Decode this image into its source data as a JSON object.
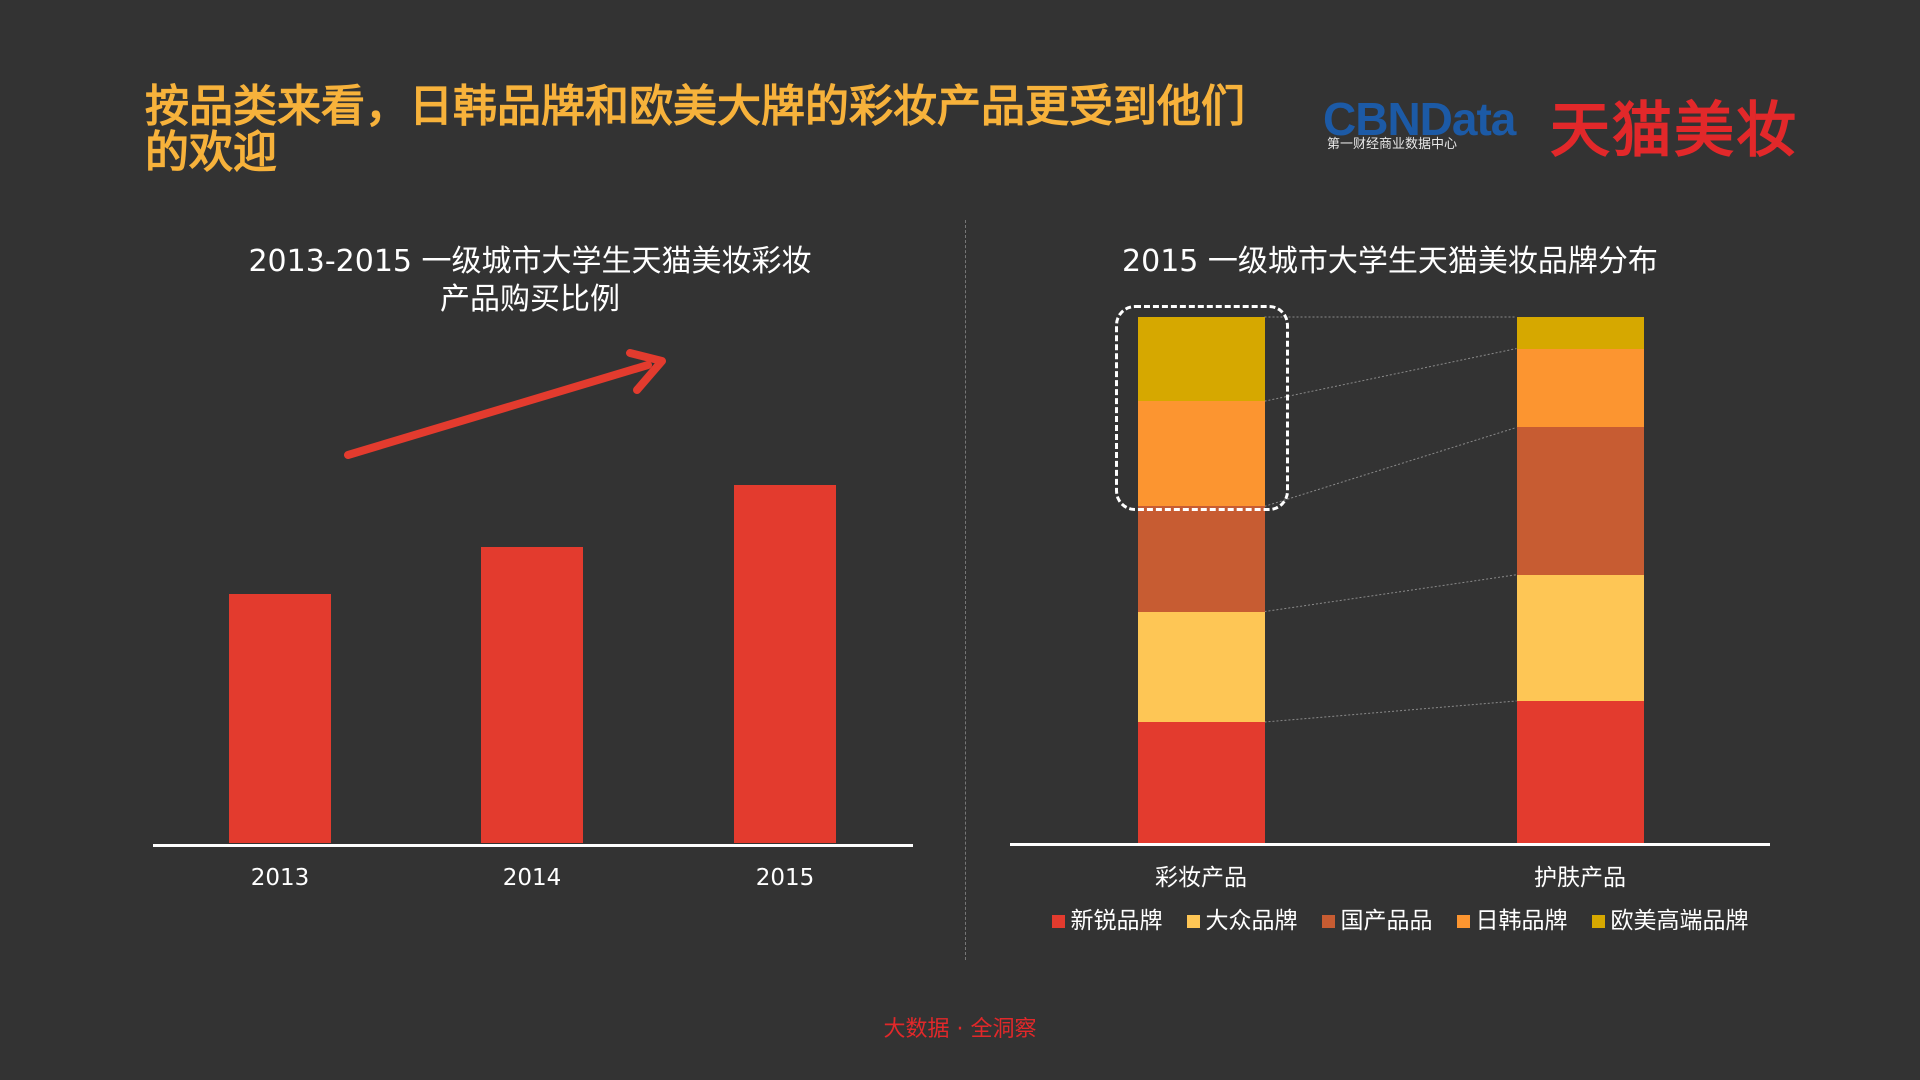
{
  "headline": "按品类来看，日韩品牌和欧美大牌的彩妆产品更受到他们的欢迎",
  "logos": {
    "cbn_word": "CBNData",
    "cbn_sub": "第一财经商业数据中心",
    "tmall": "天猫美妆"
  },
  "footer": "大数据 · 全洞察",
  "colors": {
    "background": "#333333",
    "headline": "#f7b23b",
    "bar": "#e33b2e",
    "new_brand": "#e33b2e",
    "mass_brand": "#fec655",
    "domestic_brand": "#c75c32",
    "jpkr_brand": "#fc9530",
    "western_luxury": "#d6a800"
  },
  "chart_data": [
    {
      "type": "bar",
      "title": "2013-2015 一级城市大学生天猫美妆彩妆产品购买比例",
      "title_lines": [
        "2013-2015 一级城市大学生天猫美妆彩妆",
        "产品购买比例"
      ],
      "categories": [
        "2013",
        "2014",
        "2015"
      ],
      "values": [
        57,
        68,
        82
      ],
      "ylim": [
        0,
        100
      ],
      "trend_arrow": "up",
      "grid": false
    },
    {
      "type": "bar",
      "stacked": true,
      "normalized": true,
      "title": "2015 一级城市大学生天猫美妆品牌分布",
      "categories": [
        "彩妆产品",
        "护肤产品"
      ],
      "series": [
        {
          "name": "新锐品牌",
          "color": "#e33b2e",
          "values": [
            23,
            27
          ]
        },
        {
          "name": "大众品牌",
          "color": "#fec655",
          "values": [
            21,
            24
          ]
        },
        {
          "name": "国产品品",
          "color": "#c75c32",
          "values": [
            20,
            28
          ]
        },
        {
          "name": "日韩品牌",
          "color": "#fc9530",
          "values": [
            20,
            15
          ]
        },
        {
          "name": "欧美高端品牌",
          "color": "#d6a800",
          "values": [
            16,
            6
          ]
        }
      ],
      "ylim": [
        0,
        100
      ],
      "highlighted_category": "彩妆产品",
      "highlighted_series": [
        "日韩品牌",
        "欧美高端品牌"
      ],
      "legend_position": "bottom",
      "grid": false
    }
  ]
}
